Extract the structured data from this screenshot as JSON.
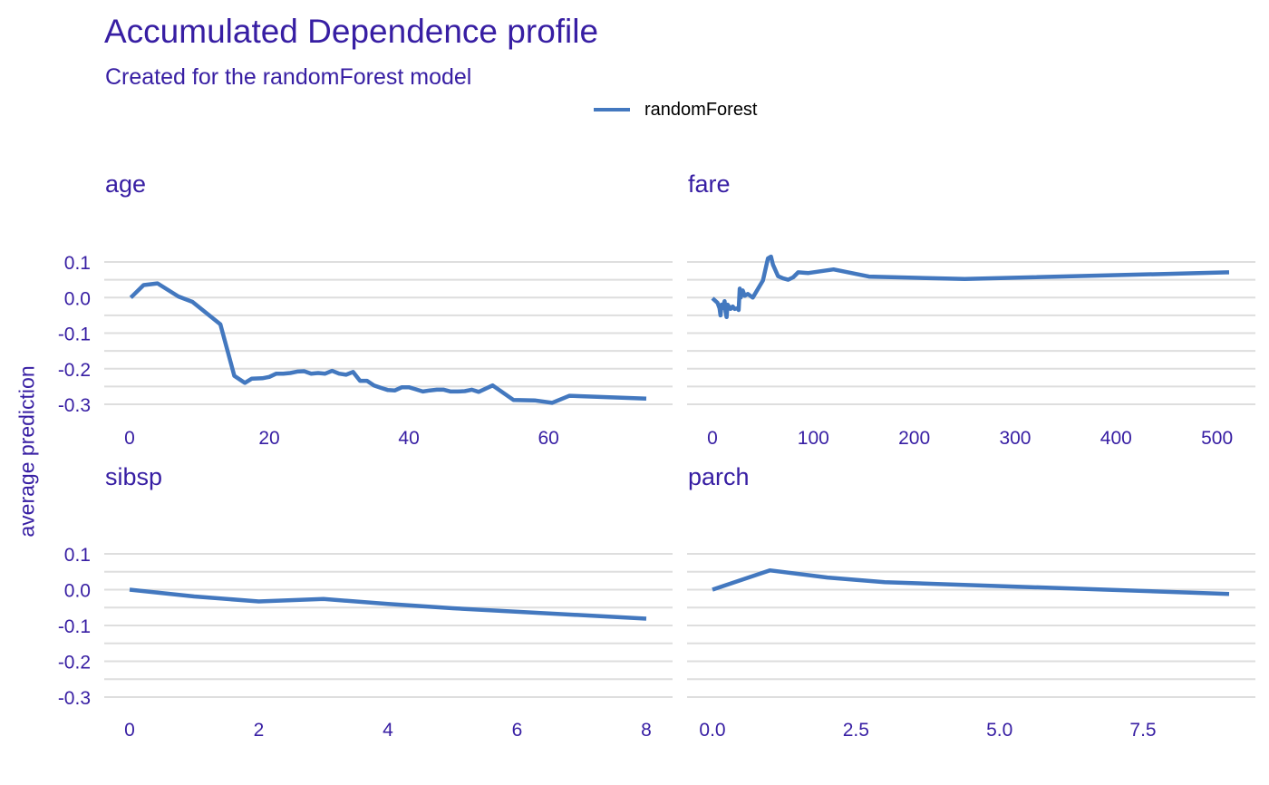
{
  "title": "Accumulated Dependence profile",
  "subtitle": "Created for the randomForest model",
  "ylabel": "average prediction",
  "colors": {
    "line": "#4378bf",
    "text": "#371ea3",
    "grid": "#dedede"
  },
  "chart_data": {
    "type": "line",
    "title": "Accumulated Dependence profile",
    "subtitle": "Created for the randomForest model",
    "ylabel": "average prediction",
    "legend": {
      "position": "top",
      "entries": [
        "randomForest"
      ]
    },
    "grid": true,
    "ylim": [
      -0.3,
      0.1
    ],
    "yticks": [
      0.1,
      0.0,
      -0.1,
      -0.2,
      -0.3
    ],
    "ytick_labels": [
      "0.1",
      "0.0",
      "-0.1",
      "-0.2",
      "-0.3"
    ],
    "panels": [
      {
        "name": "age",
        "xlim": [
          0,
          74
        ],
        "xticks": [
          0,
          20,
          40,
          60
        ],
        "xtick_labels": [
          "0",
          "20",
          "40",
          "60"
        ],
        "series": [
          {
            "name": "randomForest",
            "x": [
              0.17,
              2,
              4,
              7,
              9,
              13,
              15,
              16.5,
              17.5,
              19,
              20,
              21,
              22,
              23,
              24,
              25,
              26,
              27,
              28,
              29,
              30,
              31,
              32,
              33,
              34,
              35,
              36,
              37,
              38,
              39,
              40,
              41,
              42,
              43,
              44,
              45,
              46,
              47,
              48,
              49,
              50,
              52,
              55,
              58,
              60.5,
              63,
              74
            ],
            "y": [
              0.0,
              0.035,
              0.04,
              0.003,
              -0.012,
              -0.075,
              -0.22,
              -0.24,
              -0.228,
              -0.227,
              -0.223,
              -0.214,
              -0.214,
              -0.212,
              -0.208,
              -0.207,
              -0.214,
              -0.212,
              -0.214,
              -0.206,
              -0.214,
              -0.217,
              -0.209,
              -0.234,
              -0.234,
              -0.247,
              -0.254,
              -0.26,
              -0.261,
              -0.252,
              -0.252,
              -0.258,
              -0.264,
              -0.261,
              -0.259,
              -0.259,
              -0.264,
              -0.264,
              -0.263,
              -0.259,
              -0.265,
              -0.247,
              -0.288,
              -0.289,
              -0.296,
              -0.276,
              -0.284
            ]
          }
        ]
      },
      {
        "name": "fare",
        "xlim": [
          0,
          512
        ],
        "xticks": [
          0,
          100,
          200,
          300,
          400,
          500
        ],
        "xtick_labels": [
          "0",
          "100",
          "200",
          "300",
          "400",
          "500"
        ],
        "series": [
          {
            "name": "randomForest",
            "x": [
              0,
              5,
              7,
              8,
              9,
              10,
              12,
              13,
              14,
              15,
              18,
              20,
              22,
              25,
              26,
              27,
              28,
              30,
              32,
              35,
              40,
              50,
              55,
              58,
              60,
              65,
              70,
              75,
              80,
              85,
              95,
              120,
              155,
              250,
              512
            ],
            "y": [
              -0.002,
              -0.015,
              -0.03,
              -0.05,
              -0.02,
              -0.03,
              -0.01,
              -0.04,
              -0.055,
              -0.02,
              -0.032,
              -0.025,
              -0.032,
              -0.03,
              -0.035,
              0.025,
              0.0,
              0.02,
              0.005,
              0.01,
              0.0,
              0.048,
              0.11,
              0.115,
              0.092,
              0.06,
              0.054,
              0.05,
              0.057,
              0.071,
              0.069,
              0.079,
              0.059,
              0.052,
              0.071
            ]
          }
        ]
      },
      {
        "name": "sibsp",
        "xlim": [
          0,
          8
        ],
        "xticks": [
          0,
          2,
          4,
          6,
          8
        ],
        "xtick_labels": [
          "0",
          "2",
          "4",
          "6",
          "8"
        ],
        "series": [
          {
            "name": "randomForest",
            "x": [
              0,
              1,
              2,
              3,
              4,
              5,
              8
            ],
            "y": [
              0.0,
              -0.019,
              -0.033,
              -0.026,
              -0.04,
              -0.052,
              -0.081
            ]
          }
        ]
      },
      {
        "name": "parch",
        "xlim": [
          0,
          9
        ],
        "xticks": [
          0,
          2.5,
          5,
          7.5
        ],
        "xtick_labels": [
          "0.0",
          "2.5",
          "5.0",
          "7.5"
        ],
        "series": [
          {
            "name": "randomForest",
            "x": [
              0,
              1,
              2,
              3,
              9
            ],
            "y": [
              0.0,
              0.054,
              0.034,
              0.021,
              -0.012
            ]
          }
        ]
      }
    ]
  }
}
